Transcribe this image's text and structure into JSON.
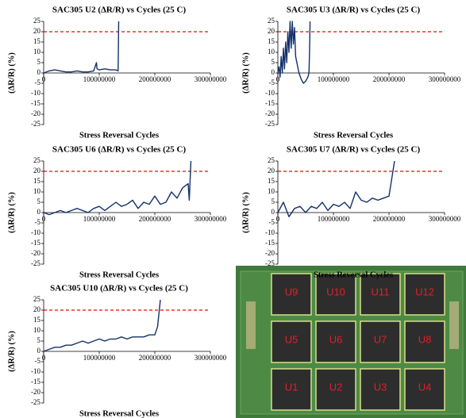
{
  "chart_data": [
    {
      "type": "line",
      "title": "SAC305 U2 (ΔR/R) vs Cycles (25 C)",
      "x_label": "Stress Reversal Cycles",
      "y_label": "(ΔR/R)  (%)",
      "xlim": [
        0,
        300000000
      ],
      "xticks": [
        0,
        100000000,
        200000000,
        300000000
      ],
      "ylim": [
        -25,
        25
      ],
      "yticks": [
        -25,
        -20,
        -15,
        -10,
        -5,
        0,
        5,
        10,
        15,
        20,
        25
      ],
      "threshold": 20,
      "threshold_color": "#ff0000",
      "color": "#13306a",
      "x": [
        0,
        10000000,
        20000000,
        30000000,
        40000000,
        50000000,
        60000000,
        70000000,
        80000000,
        90000000,
        95000000,
        96000000,
        100000000,
        110000000,
        120000000,
        130000000,
        134000000,
        135000000
      ],
      "values": [
        0,
        1,
        1.5,
        1,
        0.5,
        0.5,
        1,
        0.5,
        0.5,
        1,
        5,
        2,
        1.5,
        2,
        1.5,
        1.5,
        1,
        25
      ]
    },
    {
      "type": "line",
      "title": "SAC305 U3 (ΔR/R) vs Cycles (25 C)",
      "x_label": "Stress Reversal Cycles",
      "y_label": "(ΔR/R)  (%)",
      "xlim": [
        0,
        300000000
      ],
      "xticks": [
        0,
        100000000,
        200000000,
        300000000
      ],
      "ylim": [
        -25,
        25
      ],
      "yticks": [
        -25,
        -20,
        -15,
        -10,
        -5,
        0,
        5,
        10,
        15,
        20,
        25
      ],
      "threshold": 20,
      "threshold_color": "#ff0000",
      "color": "#13306a",
      "x": [
        0,
        2000000,
        4000000,
        6000000,
        8000000,
        10000000,
        12000000,
        14000000,
        16000000,
        18000000,
        20000000,
        22000000,
        24000000,
        26000000,
        28000000,
        30000000,
        32000000,
        35000000,
        38000000,
        42000000,
        46000000,
        50000000,
        54000000,
        56000000,
        57000000,
        58000000
      ],
      "values": [
        0,
        3,
        -2,
        8,
        0,
        12,
        2,
        15,
        5,
        20,
        10,
        25,
        12,
        25,
        14,
        22,
        8,
        4,
        0,
        -3,
        -5,
        -4,
        -2,
        0,
        10,
        25
      ]
    },
    {
      "type": "line",
      "title": "SAC305 U6 (ΔR/R) vs Cycles (25 C)",
      "x_label": "Stress Reversal Cycles",
      "y_label": "(ΔR/R)  (%)",
      "xlim": [
        0,
        300000000
      ],
      "xticks": [
        0,
        100000000,
        200000000,
        300000000
      ],
      "ylim": [
        -25,
        25
      ],
      "yticks": [
        -25,
        -20,
        -15,
        -10,
        -5,
        0,
        5,
        10,
        15,
        20,
        25
      ],
      "threshold": 20,
      "threshold_color": "#ff0000",
      "color": "#13306a",
      "x": [
        0,
        10000000,
        20000000,
        30000000,
        40000000,
        50000000,
        60000000,
        70000000,
        80000000,
        90000000,
        100000000,
        110000000,
        120000000,
        130000000,
        140000000,
        150000000,
        160000000,
        170000000,
        180000000,
        190000000,
        200000000,
        210000000,
        220000000,
        230000000,
        240000000,
        250000000,
        260000000,
        262000000,
        265000000
      ],
      "values": [
        0,
        -1,
        0,
        1,
        0,
        1,
        2,
        1,
        0,
        2,
        3,
        1,
        3,
        5,
        3,
        4,
        6,
        2,
        5,
        4,
        8,
        4,
        5,
        10,
        7,
        12,
        14,
        6,
        25
      ]
    },
    {
      "type": "line",
      "title": "SAC305 U7 (ΔR/R) vs Cycles (25 C)",
      "x_label": "Stress Reversal Cycles",
      "y_label": "(ΔR/R)  (%)",
      "xlim": [
        0,
        300000000
      ],
      "xticks": [
        0,
        100000000,
        200000000,
        300000000
      ],
      "ylim": [
        -25,
        25
      ],
      "yticks": [
        -25,
        -20,
        -15,
        -10,
        -5,
        0,
        5,
        10,
        15,
        20,
        25
      ],
      "threshold": 20,
      "threshold_color": "#ff0000",
      "color": "#13306a",
      "x": [
        0,
        10000000,
        20000000,
        30000000,
        40000000,
        50000000,
        60000000,
        70000000,
        80000000,
        90000000,
        100000000,
        110000000,
        120000000,
        130000000,
        140000000,
        150000000,
        160000000,
        170000000,
        180000000,
        190000000,
        200000000,
        210000000
      ],
      "values": [
        0,
        5,
        -2,
        2,
        3,
        0,
        3,
        2,
        5,
        1,
        4,
        3,
        5,
        2,
        10,
        6,
        5,
        7,
        6,
        7,
        8,
        25
      ]
    },
    {
      "type": "line",
      "title": "SAC305 U10 (ΔR/R) vs Cycles (25 C)",
      "x_label": "Stress Reversal Cycles",
      "y_label": "(ΔR/R)  (%)",
      "xlim": [
        0,
        300000000
      ],
      "xticks": [
        0,
        100000000,
        200000000,
        300000000
      ],
      "ylim": [
        -25,
        25
      ],
      "yticks": [
        -25,
        -20,
        -15,
        -10,
        -5,
        0,
        5,
        10,
        15,
        20,
        25
      ],
      "threshold": 20,
      "threshold_color": "#ff0000",
      "color": "#13306a",
      "x": [
        0,
        10000000,
        20000000,
        30000000,
        40000000,
        50000000,
        60000000,
        70000000,
        80000000,
        90000000,
        100000000,
        110000000,
        120000000,
        130000000,
        140000000,
        150000000,
        160000000,
        170000000,
        180000000,
        190000000,
        200000000,
        205000000,
        210000000
      ],
      "values": [
        0,
        1,
        2,
        2,
        3,
        3,
        4,
        5,
        4,
        5,
        6,
        5,
        6,
        6,
        7,
        6,
        7,
        7,
        7,
        8,
        8,
        12,
        25
      ]
    }
  ],
  "photo": {
    "labels": [
      "U9",
      "U10",
      "U11",
      "U12",
      "U5",
      "U6",
      "U7",
      "U8",
      "U1",
      "U2",
      "U3",
      "U4"
    ]
  }
}
